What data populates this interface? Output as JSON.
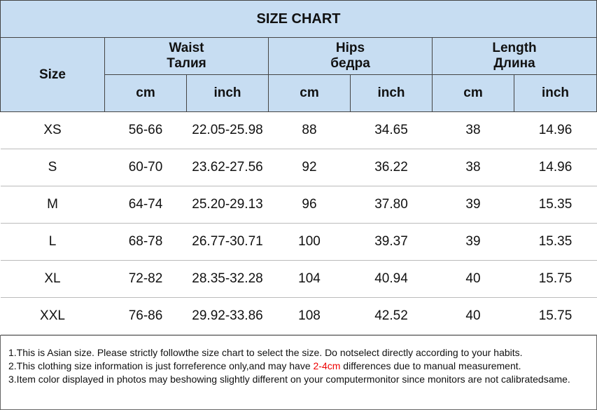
{
  "title": "SIZE CHART",
  "header": {
    "size": "Size",
    "groups": [
      {
        "name": "Waist",
        "name_ru": "Талия"
      },
      {
        "name": "Hips",
        "name_ru": "бедра"
      },
      {
        "name": "Length",
        "name_ru": "Длина"
      }
    ],
    "units": [
      "cm",
      "inch",
      "cm",
      "inch",
      "cm",
      "inch"
    ]
  },
  "rows": [
    [
      "XS",
      "56-66",
      "22.05-25.98",
      "88",
      "34.65",
      "38",
      "14.96"
    ],
    [
      "S",
      "60-70",
      "23.62-27.56",
      "92",
      "36.22",
      "38",
      "14.96"
    ],
    [
      "M",
      "64-74",
      "25.20-29.13",
      "96",
      "37.80",
      "39",
      "15.35"
    ],
    [
      "L",
      "68-78",
      "26.77-30.71",
      "100",
      "39.37",
      "39",
      "15.35"
    ],
    [
      "XL",
      "72-82",
      "28.35-32.28",
      "104",
      "40.94",
      "40",
      "15.75"
    ],
    [
      "XXL",
      "76-86",
      "29.92-33.86",
      "108",
      "42.52",
      "40",
      "15.75"
    ]
  ],
  "notes": [
    {
      "text": "1.This is Asian size. Please strictly followthe size chart to select the size. Do notselect directly according to your habits."
    },
    {
      "text": "2.This clothing size information is just forreference only,and may have ",
      "highlight": "2-4cm",
      "after": " differences due to manual measurement."
    },
    {
      "text": "3.Item color displayed in photos may beshowing slightly different on your computermonitor since monitors are not calibratedsame."
    }
  ]
}
